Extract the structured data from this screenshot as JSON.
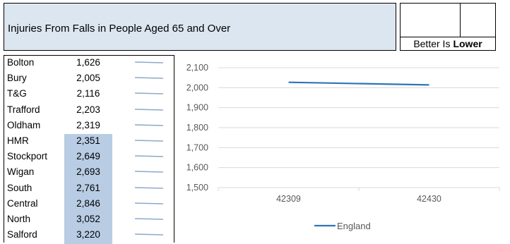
{
  "header": {
    "title": "Injuries From Falls in People Aged 65 and Over",
    "better_prefix": "Better Is",
    "better_emphasis": "Lower"
  },
  "table": {
    "rows": [
      {
        "name": "Bolton",
        "value": "1,626",
        "highlight": false
      },
      {
        "name": "Bury",
        "value": "2,005",
        "highlight": false
      },
      {
        "name": "T&G",
        "value": "2,116",
        "highlight": false
      },
      {
        "name": "Trafford",
        "value": "2,203",
        "highlight": false
      },
      {
        "name": "Oldham",
        "value": "2,319",
        "highlight": false
      },
      {
        "name": "HMR",
        "value": "2,351",
        "highlight": true
      },
      {
        "name": "Stockport",
        "value": "2,649",
        "highlight": true
      },
      {
        "name": "Wigan",
        "value": "2,693",
        "highlight": true
      },
      {
        "name": "South",
        "value": "2,761",
        "highlight": true
      },
      {
        "name": "Central",
        "value": "2,846",
        "highlight": true
      },
      {
        "name": "North",
        "value": "3,052",
        "highlight": true
      },
      {
        "name": "Salford",
        "value": "3,220",
        "highlight": true
      }
    ],
    "highlight_color": "#b8cce4",
    "spark_color": "#8da9c8"
  },
  "chart_data": {
    "type": "line",
    "x": [
      "42309",
      "42430"
    ],
    "series": [
      {
        "name": "England",
        "values": [
          2027,
          2014
        ],
        "color": "#2e75b6"
      }
    ],
    "yticks": [
      "2,100",
      "2,000",
      "1,900",
      "1,800",
      "1,700",
      "1,600",
      "1,500"
    ],
    "ylim": [
      1500,
      2100
    ],
    "grid": true,
    "legend": "bottom",
    "title": "",
    "xlabel": "",
    "ylabel": ""
  }
}
